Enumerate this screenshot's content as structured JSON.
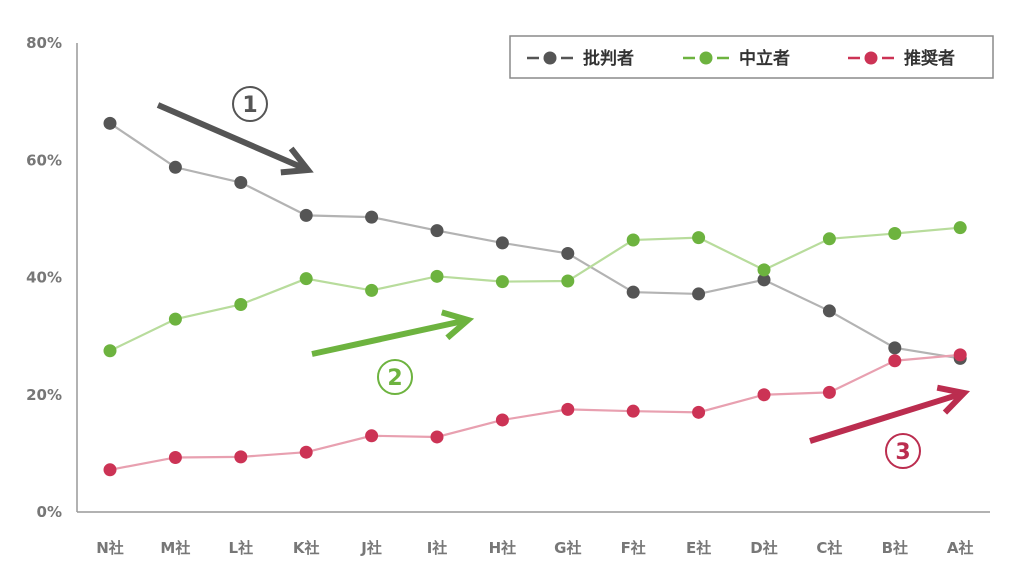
{
  "chart_data": {
    "type": "line",
    "title": "",
    "xlabel": "",
    "ylabel": "",
    "categories": [
      "N社",
      "M社",
      "L社",
      "K社",
      "J社",
      "I社",
      "H社",
      "G社",
      "F社",
      "E社",
      "D社",
      "C社",
      "B社",
      "A社"
    ],
    "y_ticks": [
      "0%",
      "20%",
      "40%",
      "60%",
      "80%"
    ],
    "ylim": [
      0,
      80
    ],
    "grid": false,
    "legend_position": "top-right",
    "series": [
      {
        "name": "批判者",
        "color": "#555555",
        "line_color": "#b3b3b3",
        "values": [
          66.3,
          58.8,
          56.2,
          50.6,
          50.3,
          48.0,
          45.9,
          44.1,
          37.5,
          37.2,
          39.6,
          34.3,
          28.0,
          26.2
        ]
      },
      {
        "name": "中立者",
        "color": "#6db33f",
        "line_color": "#b8dc9c",
        "values": [
          27.5,
          32.9,
          35.4,
          39.8,
          37.8,
          40.2,
          39.3,
          39.4,
          46.4,
          46.8,
          41.3,
          46.6,
          47.5,
          48.5
        ]
      },
      {
        "name": "推奨者",
        "color": "#cc3355",
        "line_color": "#e8a0b0",
        "values": [
          7.2,
          9.3,
          9.4,
          10.2,
          13.0,
          12.8,
          15.7,
          17.5,
          17.2,
          17.0,
          20.0,
          20.4,
          25.8,
          26.8
        ]
      }
    ],
    "annotations": [
      {
        "label": "①",
        "color": "#555555"
      },
      {
        "label": "②",
        "color": "#6db33f"
      },
      {
        "label": "③",
        "color": "#bb2d4f"
      }
    ]
  }
}
